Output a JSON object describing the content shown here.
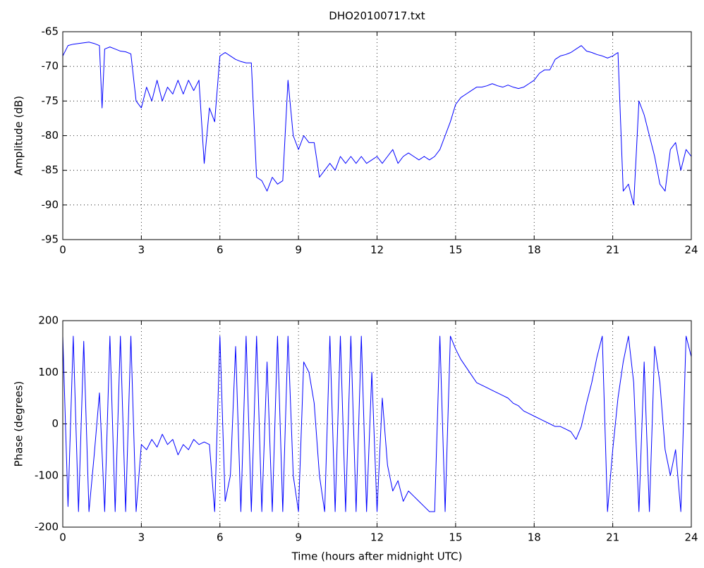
{
  "chart_data": [
    {
      "type": "line",
      "title": "DHO20100717.txt",
      "y_label": "Amplitude (dB)",
      "grid": true,
      "xlim": [
        0,
        24
      ],
      "xticks": [
        0,
        3,
        6,
        9,
        12,
        15,
        18,
        21,
        24
      ],
      "ylim": [
        -95,
        -65
      ],
      "yticks": [
        -95,
        -90,
        -85,
        -80,
        -75,
        -70,
        -65
      ],
      "x": [
        0,
        0.2,
        0.4,
        0.6,
        0.8,
        1,
        1.2,
        1.4,
        1.5,
        1.6,
        1.8,
        2,
        2.2,
        2.4,
        2.6,
        2.8,
        3,
        3.2,
        3.4,
        3.6,
        3.8,
        4,
        4.2,
        4.4,
        4.6,
        4.8,
        5,
        5.2,
        5.4,
        5.6,
        5.8,
        6,
        6.2,
        6.4,
        6.6,
        6.8,
        7,
        7.2,
        7.4,
        7.6,
        7.8,
        8,
        8.2,
        8.4,
        8.6,
        8.8,
        9,
        9.2,
        9.4,
        9.6,
        9.8,
        10,
        10.2,
        10.4,
        10.6,
        10.8,
        11,
        11.2,
        11.4,
        11.6,
        11.8,
        12,
        12.2,
        12.4,
        12.6,
        12.8,
        13,
        13.2,
        13.4,
        13.6,
        13.8,
        14,
        14.2,
        14.4,
        14.6,
        14.8,
        15,
        15.2,
        15.4,
        15.6,
        15.8,
        16,
        16.2,
        16.4,
        16.6,
        16.8,
        17,
        17.2,
        17.4,
        17.6,
        17.8,
        18,
        18.2,
        18.4,
        18.6,
        18.8,
        19,
        19.2,
        19.4,
        19.6,
        19.8,
        20,
        20.2,
        20.4,
        20.6,
        20.8,
        21,
        21.2,
        21.4,
        21.6,
        21.8,
        22,
        22.2,
        22.4,
        22.6,
        22.8,
        23,
        23.2,
        23.4,
        23.6,
        23.8,
        24
      ],
      "series": [
        {
          "color": "#0000ff",
          "values": [
            -68.5,
            -67,
            -66.8,
            -66.7,
            -66.6,
            -66.5,
            -66.7,
            -67,
            -76,
            -67.5,
            -67.2,
            -67.5,
            -67.8,
            -67.9,
            -68.2,
            -75,
            -76,
            -73,
            -75,
            -72,
            -75,
            -73,
            -74,
            -72,
            -74,
            -72,
            -73.5,
            -72,
            -84,
            -76,
            -78,
            -68.5,
            -68,
            -68.5,
            -69,
            -69.3,
            -69.5,
            -69.5,
            -86,
            -86.5,
            -88,
            -86,
            -87,
            -86.5,
            -72,
            -80,
            -82,
            -80,
            -81,
            -81,
            -86,
            -85,
            -84,
            -85,
            -83,
            -84,
            -83,
            -84,
            -83,
            -84,
            -83.5,
            -83,
            -84,
            -83,
            -82,
            -84,
            -83,
            -82.5,
            -83,
            -83.5,
            -83,
            -83.5,
            -83,
            -82,
            -80,
            -78,
            -75.5,
            -74.5,
            -74,
            -73.5,
            -73,
            -73,
            -72.8,
            -72.5,
            -72.8,
            -73,
            -72.7,
            -73,
            -73.2,
            -73,
            -72.5,
            -72,
            -71,
            -70.5,
            -70.5,
            -69,
            -68.5,
            -68.3,
            -68,
            -67.5,
            -67,
            -67.8,
            -68,
            -68.3,
            -68.5,
            -68.8,
            -68.5,
            -68,
            -88,
            -87,
            -90,
            -75,
            -77,
            -80,
            -83,
            -87,
            -88,
            -82,
            -81,
            -85,
            -82,
            -83
          ]
        }
      ]
    },
    {
      "type": "line",
      "x_label": "Time (hours after midnight UTC)",
      "y_label": "Phase (degrees)",
      "grid": true,
      "xlim": [
        0,
        24
      ],
      "xticks": [
        0,
        3,
        6,
        9,
        12,
        15,
        18,
        21,
        24
      ],
      "ylim": [
        -200,
        200
      ],
      "yticks": [
        -200,
        -100,
        0,
        100,
        200
      ],
      "x": [
        0,
        0.2,
        0.4,
        0.6,
        0.8,
        1,
        1.2,
        1.4,
        1.6,
        1.8,
        2,
        2.2,
        2.4,
        2.6,
        2.8,
        3,
        3.2,
        3.4,
        3.6,
        3.8,
        4,
        4.2,
        4.4,
        4.6,
        4.8,
        5,
        5.2,
        5.4,
        5.6,
        5.8,
        6,
        6.2,
        6.4,
        6.6,
        6.8,
        7,
        7.2,
        7.4,
        7.6,
        7.8,
        8,
        8.2,
        8.4,
        8.6,
        8.8,
        9,
        9.2,
        9.4,
        9.6,
        9.8,
        10,
        10.2,
        10.4,
        10.6,
        10.8,
        11,
        11.2,
        11.4,
        11.6,
        11.8,
        12,
        12.2,
        12.4,
        12.6,
        12.8,
        13,
        13.2,
        13.4,
        13.6,
        13.8,
        14,
        14.2,
        14.4,
        14.6,
        14.8,
        15,
        15.2,
        15.4,
        15.6,
        15.8,
        16,
        16.2,
        16.4,
        16.6,
        16.8,
        17,
        17.2,
        17.4,
        17.6,
        17.8,
        18,
        18.2,
        18.4,
        18.6,
        18.8,
        19,
        19.2,
        19.4,
        19.6,
        19.8,
        20,
        20.2,
        20.4,
        20.6,
        20.8,
        21,
        21.2,
        21.4,
        21.6,
        21.8,
        22,
        22.2,
        22.4,
        22.6,
        22.8,
        23,
        23.2,
        23.4,
        23.6,
        23.8,
        24
      ],
      "series": [
        {
          "color": "#0000ff",
          "values": [
            170,
            -160,
            170,
            -170,
            160,
            -170,
            -60,
            60,
            -170,
            170,
            -170,
            170,
            -170,
            170,
            -170,
            -40,
            -50,
            -30,
            -45,
            -20,
            -40,
            -30,
            -60,
            -40,
            -50,
            -30,
            -40,
            -35,
            -40,
            -170,
            170,
            -150,
            -100,
            150,
            -170,
            170,
            -170,
            170,
            -170,
            120,
            -170,
            170,
            -170,
            170,
            -100,
            -170,
            120,
            100,
            40,
            -100,
            -170,
            170,
            -170,
            170,
            -170,
            170,
            -170,
            170,
            -170,
            100,
            -170,
            50,
            -80,
            -130,
            -110,
            -150,
            -130,
            -140,
            -150,
            -160,
            -170,
            -170,
            170,
            -170,
            170,
            145,
            125,
            110,
            95,
            80,
            75,
            70,
            65,
            60,
            55,
            50,
            40,
            35,
            25,
            20,
            15,
            10,
            5,
            0,
            -5,
            -5,
            -10,
            -15,
            -30,
            -5,
            40,
            80,
            130,
            170,
            -170,
            -50,
            50,
            120,
            170,
            80,
            -170,
            120,
            -170,
            150,
            80,
            -50,
            -100,
            -50,
            -170,
            170,
            130
          ]
        }
      ]
    }
  ]
}
